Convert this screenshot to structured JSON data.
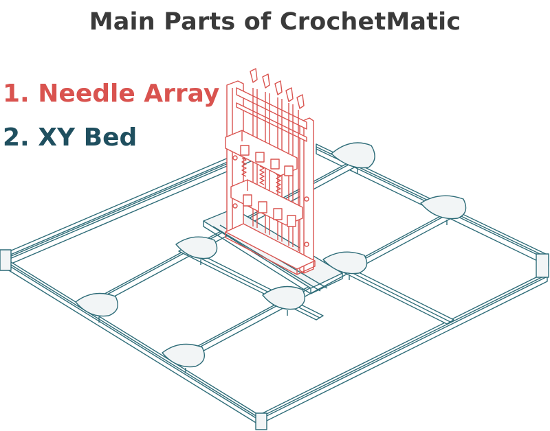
{
  "title": "Main Parts of CrochetMatic",
  "legend": [
    {
      "number": "1.",
      "label": "Needle Array",
      "color": "#d9534f"
    },
    {
      "number": "2.",
      "label": "XY Bed",
      "color": "#1f4f5f"
    }
  ],
  "colors": {
    "title": "#3a3a3a",
    "needle_array_stroke": "#d9534f",
    "bed_stroke": "#2e6c78",
    "bed_fill": "#ffffff",
    "pad_fill": "#f2f5f6"
  }
}
